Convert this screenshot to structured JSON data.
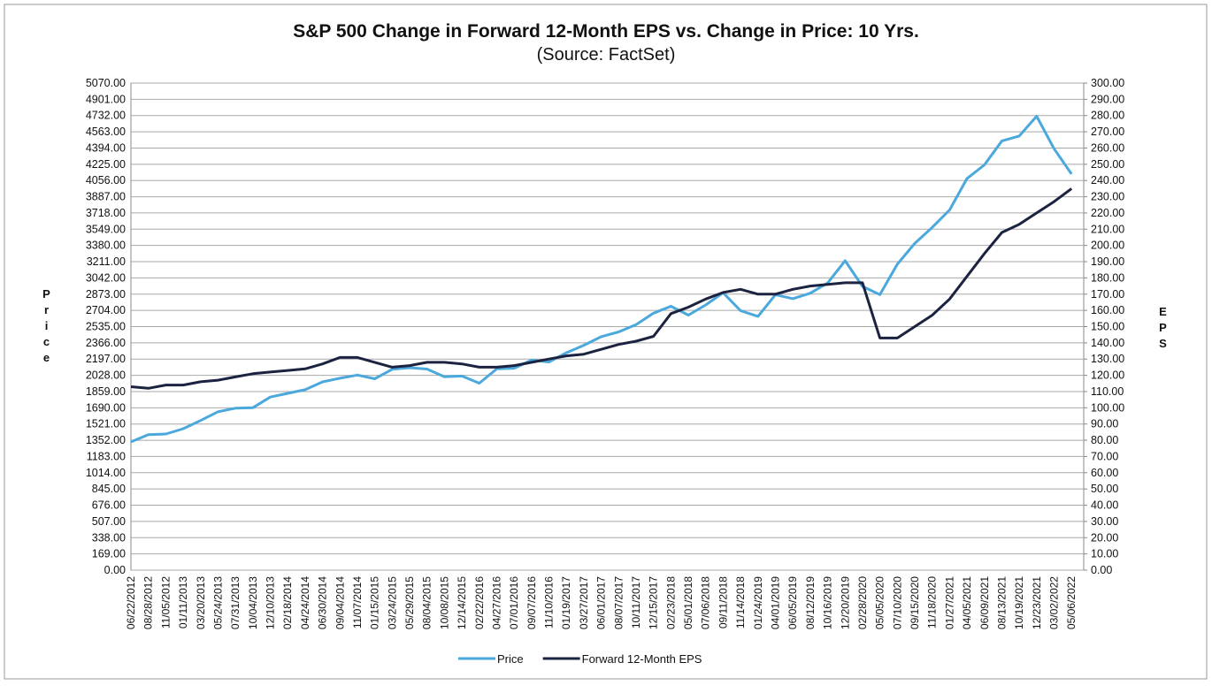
{
  "chart_data": {
    "type": "line",
    "title": "S&P 500 Change in Forward 12-Month EPS vs. Change in Price: 10 Yrs.",
    "subtitle": "(Source: FactSet)",
    "y_label": "Price",
    "y2_label": "EPS",
    "grid": true,
    "legend": "bottom",
    "categories": [
      "06/22/2012",
      "08/28/2012",
      "11/05/2012",
      "01/11/2013",
      "03/20/2013",
      "05/24/2013",
      "07/31/2013",
      "10/04/2013",
      "12/10/2013",
      "02/18/2014",
      "04/24/2014",
      "06/30/2014",
      "09/04/2014",
      "11/07/2014",
      "01/15/2015",
      "03/24/2015",
      "05/29/2015",
      "08/04/2015",
      "10/08/2015",
      "12/14/2015",
      "02/22/2016",
      "04/27/2016",
      "07/01/2016",
      "09/07/2016",
      "11/10/2016",
      "01/19/2017",
      "03/27/2017",
      "06/01/2017",
      "08/07/2017",
      "10/11/2017",
      "12/15/2017",
      "02/23/2018",
      "05/01/2018",
      "07/06/2018",
      "09/11/2018",
      "11/14/2018",
      "01/24/2019",
      "04/01/2019",
      "06/05/2019",
      "08/12/2019",
      "10/16/2019",
      "12/20/2019",
      "02/28/2020",
      "05/05/2020",
      "07/10/2020",
      "09/15/2020",
      "11/18/2020",
      "01/27/2021",
      "04/05/2021",
      "06/09/2021",
      "08/13/2021",
      "10/19/2021",
      "12/23/2021",
      "03/02/2022",
      "05/06/2022"
    ],
    "series": [
      {
        "name": "Price",
        "color": "#4aa8dc",
        "axis": "y",
        "values": [
          1335,
          1410,
          1417,
          1472,
          1558,
          1649,
          1686,
          1690,
          1802,
          1840,
          1878,
          1960,
          1998,
          2031,
          1992,
          2091,
          2107,
          2093,
          2013,
          2021,
          1946,
          2095,
          2102,
          2186,
          2167,
          2263,
          2341,
          2430,
          2480,
          2555,
          2675,
          2747,
          2655,
          2760,
          2887,
          2701,
          2642,
          2867,
          2826,
          2883,
          2990,
          3221,
          2954,
          2868,
          3185,
          3401,
          3567,
          3750,
          4077,
          4219,
          4468,
          4519,
          4725,
          4386,
          4123
        ]
      },
      {
        "name": "Forward 12-Month EPS",
        "color": "#1c2340",
        "axis": "y2",
        "values": [
          113,
          112,
          114,
          114,
          116,
          117,
          119,
          121,
          122,
          123,
          124,
          127,
          131,
          131,
          128,
          125,
          126,
          128,
          128,
          127,
          125,
          125,
          126,
          128,
          130,
          132,
          133,
          136,
          139,
          141,
          144,
          158,
          162,
          167,
          171,
          173,
          170,
          170,
          173,
          175,
          176,
          177,
          177,
          143,
          143,
          150,
          157,
          167,
          181,
          195,
          208,
          213,
          220,
          227,
          235
        ]
      }
    ],
    "ylim": [
      0,
      5070
    ],
    "yticks": [
      {
        "value": 0,
        "label": "0.00"
      },
      {
        "value": 169,
        "label": "169.00"
      },
      {
        "value": 338,
        "label": "338.00"
      },
      {
        "value": 507,
        "label": "507.00"
      },
      {
        "value": 676,
        "label": "676.00"
      },
      {
        "value": 845,
        "label": "845.00"
      },
      {
        "value": 1014,
        "label": "1014.00"
      },
      {
        "value": 1183,
        "label": "1183.00"
      },
      {
        "value": 1352,
        "label": "1352.00"
      },
      {
        "value": 1521,
        "label": "1521.00"
      },
      {
        "value": 1690,
        "label": "1690.00"
      },
      {
        "value": 1859,
        "label": "1859.00"
      },
      {
        "value": 2028,
        "label": "2028.00"
      },
      {
        "value": 2197,
        "label": "2197.00"
      },
      {
        "value": 2366,
        "label": "2366.00"
      },
      {
        "value": 2535,
        "label": "2535.00"
      },
      {
        "value": 2704,
        "label": "2704.00"
      },
      {
        "value": 2873,
        "label": "2873.00"
      },
      {
        "value": 3042,
        "label": "3042.00"
      },
      {
        "value": 3211,
        "label": "3211.00"
      },
      {
        "value": 3380,
        "label": "3380.00"
      },
      {
        "value": 3549,
        "label": "3549.00"
      },
      {
        "value": 3718,
        "label": "3718.00"
      },
      {
        "value": 3887,
        "label": "3887.00"
      },
      {
        "value": 4056,
        "label": "4056.00"
      },
      {
        "value": 4225,
        "label": "4225.00"
      },
      {
        "value": 4394,
        "label": "4394.00"
      },
      {
        "value": 4563,
        "label": "4563.00"
      },
      {
        "value": 4732,
        "label": "4732.00"
      },
      {
        "value": 4901,
        "label": "4901.00"
      },
      {
        "value": 5070,
        "label": "5070.00"
      }
    ],
    "y2lim": [
      0,
      300
    ],
    "y2ticks": [
      {
        "value": 0,
        "label": "0.00"
      },
      {
        "value": 10,
        "label": "10.00"
      },
      {
        "value": 20,
        "label": "20.00"
      },
      {
        "value": 30,
        "label": "30.00"
      },
      {
        "value": 40,
        "label": "40.00"
      },
      {
        "value": 50,
        "label": "50.00"
      },
      {
        "value": 60,
        "label": "60.00"
      },
      {
        "value": 70,
        "label": "70.00"
      },
      {
        "value": 80,
        "label": "80.00"
      },
      {
        "value": 90,
        "label": "90.00"
      },
      {
        "value": 100,
        "label": "100.00"
      },
      {
        "value": 110,
        "label": "110.00"
      },
      {
        "value": 120,
        "label": "120.00"
      },
      {
        "value": 130,
        "label": "130.00"
      },
      {
        "value": 140,
        "label": "140.00"
      },
      {
        "value": 150,
        "label": "150.00"
      },
      {
        "value": 160,
        "label": "160.00"
      },
      {
        "value": 170,
        "label": "170.00"
      },
      {
        "value": 180,
        "label": "180.00"
      },
      {
        "value": 190,
        "label": "190.00"
      },
      {
        "value": 200,
        "label": "200.00"
      },
      {
        "value": 210,
        "label": "210.00"
      },
      {
        "value": 220,
        "label": "220.00"
      },
      {
        "value": 230,
        "label": "230.00"
      },
      {
        "value": 240,
        "label": "240.00"
      },
      {
        "value": 250,
        "label": "250.00"
      },
      {
        "value": 260,
        "label": "260.00"
      },
      {
        "value": 270,
        "label": "270.00"
      },
      {
        "value": 280,
        "label": "280.00"
      },
      {
        "value": 290,
        "label": "290.00"
      },
      {
        "value": 300,
        "label": "300.00"
      }
    ]
  }
}
